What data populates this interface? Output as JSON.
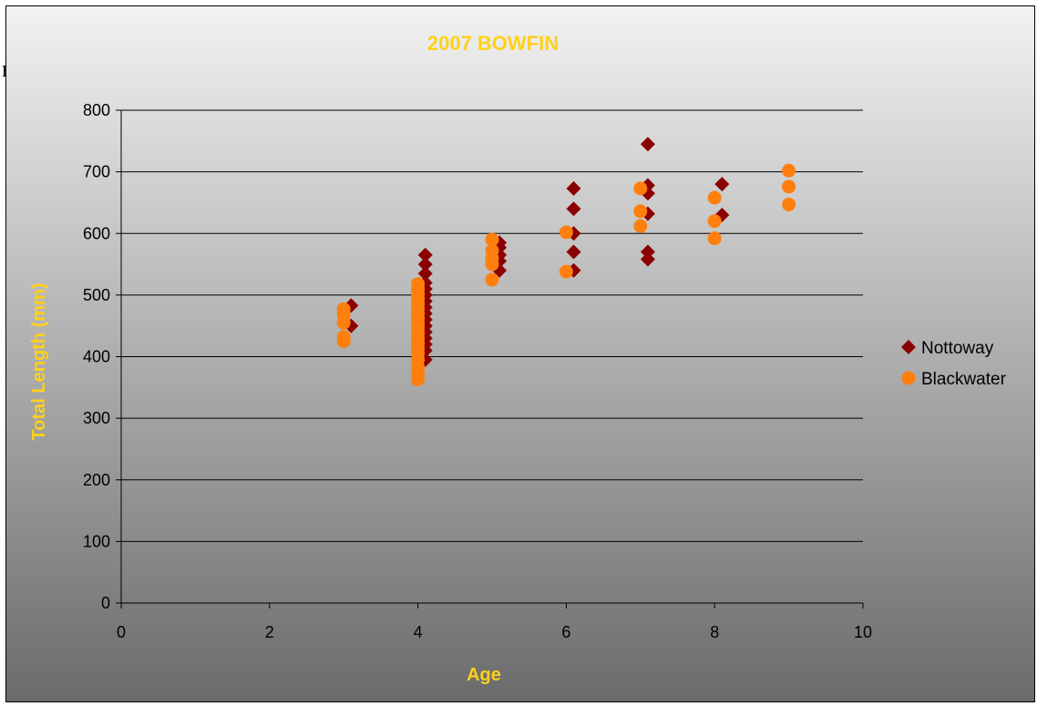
{
  "page": {
    "stray_text": "E"
  },
  "colors": {
    "background_top": "#f2f2f2",
    "background_bottom": "#6b6b6b",
    "title": "#ffd11a",
    "axis_title": "#ffd11a",
    "nottoway": "#8b0000",
    "blackwater": "#ff7f0e",
    "gridline": "#000000",
    "text": "#000000"
  },
  "chart_data": {
    "type": "scatter",
    "title": "2007 BOWFIN",
    "xlabel": "Age",
    "ylabel": "Total Length (mm)",
    "xlim": [
      0,
      10
    ],
    "ylim": [
      0,
      800
    ],
    "xticks": [
      0,
      2,
      4,
      6,
      8,
      10
    ],
    "yticks": [
      0,
      100,
      200,
      300,
      400,
      500,
      600,
      700,
      800
    ],
    "grid": "horizontal",
    "legend_position": "right",
    "series": [
      {
        "name": "Nottoway",
        "marker": "diamond",
        "color": "#8b0000",
        "points": [
          [
            3.1,
            483
          ],
          [
            3.1,
            450
          ],
          [
            4.1,
            565
          ],
          [
            4.1,
            550
          ],
          [
            4.1,
            535
          ],
          [
            4.1,
            520
          ],
          [
            4.1,
            510
          ],
          [
            4.1,
            500
          ],
          [
            4.1,
            490
          ],
          [
            4.1,
            480
          ],
          [
            4.1,
            470
          ],
          [
            4.1,
            460
          ],
          [
            4.1,
            450
          ],
          [
            4.1,
            440
          ],
          [
            4.1,
            430
          ],
          [
            4.1,
            420
          ],
          [
            4.1,
            410
          ],
          [
            4.1,
            395
          ],
          [
            5.1,
            585
          ],
          [
            5.1,
            577
          ],
          [
            5.1,
            565
          ],
          [
            5.1,
            555
          ],
          [
            5.1,
            540
          ],
          [
            6.1,
            673
          ],
          [
            6.1,
            640
          ],
          [
            6.1,
            600
          ],
          [
            6.1,
            570
          ],
          [
            6.1,
            540
          ],
          [
            7.1,
            745
          ],
          [
            7.1,
            678
          ],
          [
            7.1,
            665
          ],
          [
            7.1,
            632
          ],
          [
            7.1,
            570
          ],
          [
            7.1,
            558
          ],
          [
            8.1,
            680
          ],
          [
            8.1,
            630
          ]
        ]
      },
      {
        "name": "Blackwater",
        "marker": "circle",
        "color": "#ff7f0e",
        "points": [
          [
            3,
            477
          ],
          [
            3,
            468
          ],
          [
            3,
            455
          ],
          [
            3,
            432
          ],
          [
            3,
            425
          ],
          [
            4,
            518
          ],
          [
            4,
            510
          ],
          [
            4,
            502
          ],
          [
            4,
            494
          ],
          [
            4,
            486
          ],
          [
            4,
            478
          ],
          [
            4,
            470
          ],
          [
            4,
            462
          ],
          [
            4,
            454
          ],
          [
            4,
            446
          ],
          [
            4,
            438
          ],
          [
            4,
            430
          ],
          [
            4,
            422
          ],
          [
            4,
            414
          ],
          [
            4,
            405
          ],
          [
            4,
            395
          ],
          [
            4,
            383
          ],
          [
            4,
            372
          ],
          [
            4,
            363
          ],
          [
            5,
            590
          ],
          [
            5,
            572
          ],
          [
            5,
            560
          ],
          [
            5,
            550
          ],
          [
            5,
            525
          ],
          [
            6,
            602
          ],
          [
            6,
            538
          ],
          [
            7,
            673
          ],
          [
            7,
            636
          ],
          [
            7,
            612
          ],
          [
            8,
            658
          ],
          [
            8,
            620
          ],
          [
            8,
            592
          ],
          [
            9,
            702
          ],
          [
            9,
            676
          ],
          [
            9,
            647
          ]
        ]
      }
    ]
  }
}
